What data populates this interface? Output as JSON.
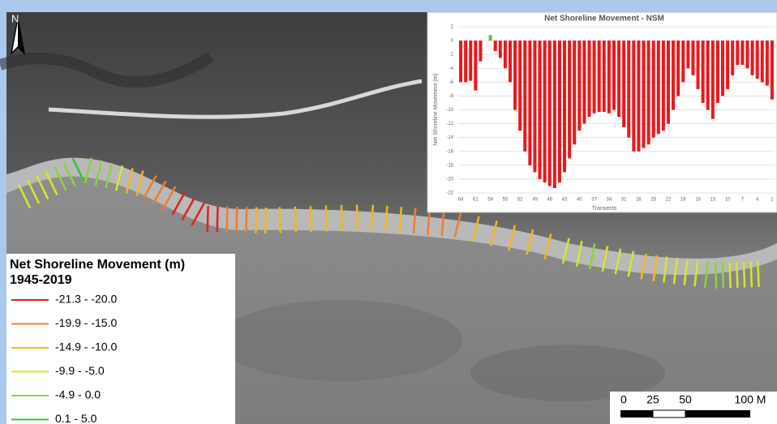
{
  "north_arrow": "N",
  "legend": {
    "title": "Net Shoreline Movement (m)",
    "period": "1945-2019",
    "items": [
      {
        "label": "-21.3 - -20.0",
        "color": "#e3201c",
        "min": -21.3,
        "max": -20.0
      },
      {
        "label": "-19.9 - -15.0",
        "color": "#f07d28",
        "min": -19.9,
        "max": -15.0
      },
      {
        "label": "-14.9 - -10.0",
        "color": "#f3b71c",
        "min": -14.9,
        "max": -10.0
      },
      {
        "label": "-9.9 - -5.0",
        "color": "#d6e62a",
        "min": -9.9,
        "max": -5.0
      },
      {
        "label": "-4.9 - 0.0",
        "color": "#8ad43a",
        "min": -4.9,
        "max": 0.0
      },
      {
        "label": "0.1 - 5.0",
        "color": "#33c43a",
        "min": 0.1,
        "max": 5.0
      }
    ]
  },
  "scale_bar": {
    "labels": [
      "0",
      "25",
      "50",
      "100 M"
    ]
  },
  "chart_data": {
    "type": "bar",
    "title": "Net Shoreline Movement - NSM",
    "x_label": "Transects",
    "y_label": "Net Shoreline Movement (m)",
    "categories": [
      64,
      null,
      null,
      61,
      null,
      null,
      58,
      null,
      null,
      55,
      null,
      null,
      52,
      null,
      null,
      49,
      null,
      null,
      46,
      null,
      null,
      43,
      null,
      null,
      40,
      null,
      null,
      37,
      null,
      null,
      34,
      null,
      null,
      31,
      null,
      null,
      28,
      null,
      null,
      25,
      null,
      null,
      22,
      null,
      null,
      19,
      null,
      null,
      16,
      null,
      null,
      13,
      null,
      null,
      10,
      null,
      null,
      7,
      null,
      null,
      4,
      null,
      null,
      1
    ],
    "values": [
      -6,
      -6,
      -5.8,
      -7.2,
      -3,
      0,
      0.8,
      -1.5,
      -2.5,
      -4,
      -6,
      -10,
      -13,
      -16,
      -18,
      -19,
      -20,
      -20.5,
      -21,
      -21.3,
      -20.5,
      -19,
      -17,
      -15,
      -13,
      -12,
      -11,
      -10.5,
      -10.3,
      -10.3,
      -10.5,
      -10,
      -11,
      -12.5,
      -14,
      -16,
      -16,
      -15.5,
      -15,
      -14,
      -13.5,
      -13,
      -12,
      -10,
      -8,
      -6,
      -4,
      -5,
      -7,
      -9,
      -10,
      -11.3,
      -9,
      -8,
      -7,
      -5,
      -3.5,
      -3.5,
      -4,
      -5,
      -5.5,
      -6,
      -6.5,
      -8.5
    ],
    "color": "#e8191c",
    "positive_color": "#6fb346",
    "ylim": [
      -22,
      2
    ],
    "yticks": [
      -22,
      -20,
      -18,
      -16,
      -14,
      -12,
      -10,
      -8,
      -6,
      -4,
      -2,
      0,
      2
    ],
    "grid": true
  }
}
